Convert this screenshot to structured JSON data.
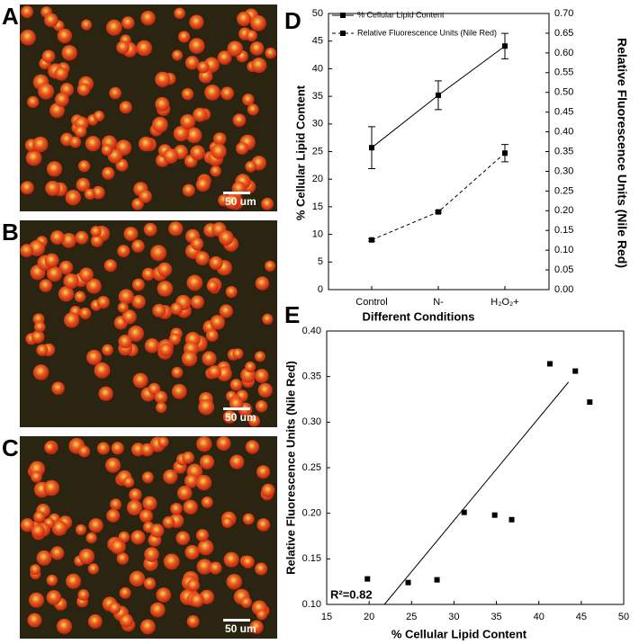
{
  "panels": [
    {
      "label": "A",
      "scale_bar": "50 um"
    },
    {
      "label": "B",
      "scale_bar": "50 um"
    },
    {
      "label": "C",
      "scale_bar": "50 um"
    }
  ],
  "chart_data": [
    {
      "type": "line",
      "panel_label": "D",
      "categories": [
        "Control",
        "N-",
        "H₂O₂+"
      ],
      "x_label": "Different Conditions",
      "y_label": "% Cellular Lipid Content",
      "y2_label": "Relative Fluorescence Units (Nile Red)",
      "series": [
        {
          "name": "% Cellular Lipid Content",
          "color": "#000000",
          "line_style": "solid",
          "values": [
            25.7,
            35.2,
            44.1
          ],
          "errors": [
            3.8,
            2.6,
            2.3
          ]
        },
        {
          "name": "Relative Fluorescence Units (Nile Red)",
          "color": "#000000",
          "line_style": "dashed",
          "axis": "y2",
          "values": [
            0.126,
            0.197,
            0.346
          ],
          "errors": [
            0.003,
            0.003,
            0.022
          ]
        }
      ],
      "ylim": [
        0,
        50
      ],
      "yticks": [
        0,
        5,
        10,
        15,
        20,
        25,
        30,
        35,
        40,
        45,
        50
      ],
      "y2lim": [
        0,
        0.7
      ],
      "y2ticks": [
        {
          "value": 0,
          "label": "0.00"
        },
        {
          "value": 0.05,
          "label": "0.05"
        },
        {
          "value": 0.1,
          "label": "0.10"
        },
        {
          "value": 0.15,
          "label": "0.15"
        },
        {
          "value": 0.2,
          "label": "0.20"
        },
        {
          "value": 0.25,
          "label": "0.25"
        },
        {
          "value": 0.3,
          "label": "0.30"
        },
        {
          "value": 0.35,
          "label": "0.35"
        },
        {
          "value": 0.4,
          "label": "0.40"
        },
        {
          "value": 0.45,
          "label": "0.45"
        },
        {
          "value": 0.5,
          "label": "0.50"
        },
        {
          "value": 0.55,
          "label": "0.55"
        },
        {
          "value": 0.6,
          "label": "0.60"
        },
        {
          "value": 0.65,
          "label": "0.65"
        },
        {
          "value": 0.7,
          "label": "0.70"
        }
      ],
      "legend": "top-left"
    },
    {
      "type": "scatter",
      "panel_label": "E",
      "x_label": "% Cellular Lipid Content",
      "y_label": "Relative Fluorescence Units (Nile Red)",
      "annotation": "R²=0.82",
      "color": "#000000",
      "x": [
        19.8,
        24.6,
        28.0,
        31.2,
        34.8,
        36.8,
        41.3,
        44.3,
        46.0
      ],
      "values": [
        0.128,
        0.124,
        0.127,
        0.201,
        0.198,
        0.193,
        0.364,
        0.356,
        0.322
      ],
      "fit": {
        "x": [
          21.8,
          43.5
        ],
        "y": [
          0.1,
          0.344
        ]
      },
      "xlim": [
        15,
        50
      ],
      "xticks": [
        15,
        20,
        25,
        30,
        35,
        40,
        45,
        50
      ],
      "ylim": [
        0.1,
        0.4
      ],
      "yticks": [
        {
          "value": 0.1,
          "label": "0.10"
        },
        {
          "value": 0.15,
          "label": "0.15"
        },
        {
          "value": 0.2,
          "label": "0.20"
        },
        {
          "value": 0.25,
          "label": "0.25"
        },
        {
          "value": 0.3,
          "label": "0.30"
        },
        {
          "value": 0.35,
          "label": "0.35"
        },
        {
          "value": 0.4,
          "label": "0.40"
        }
      ]
    }
  ]
}
